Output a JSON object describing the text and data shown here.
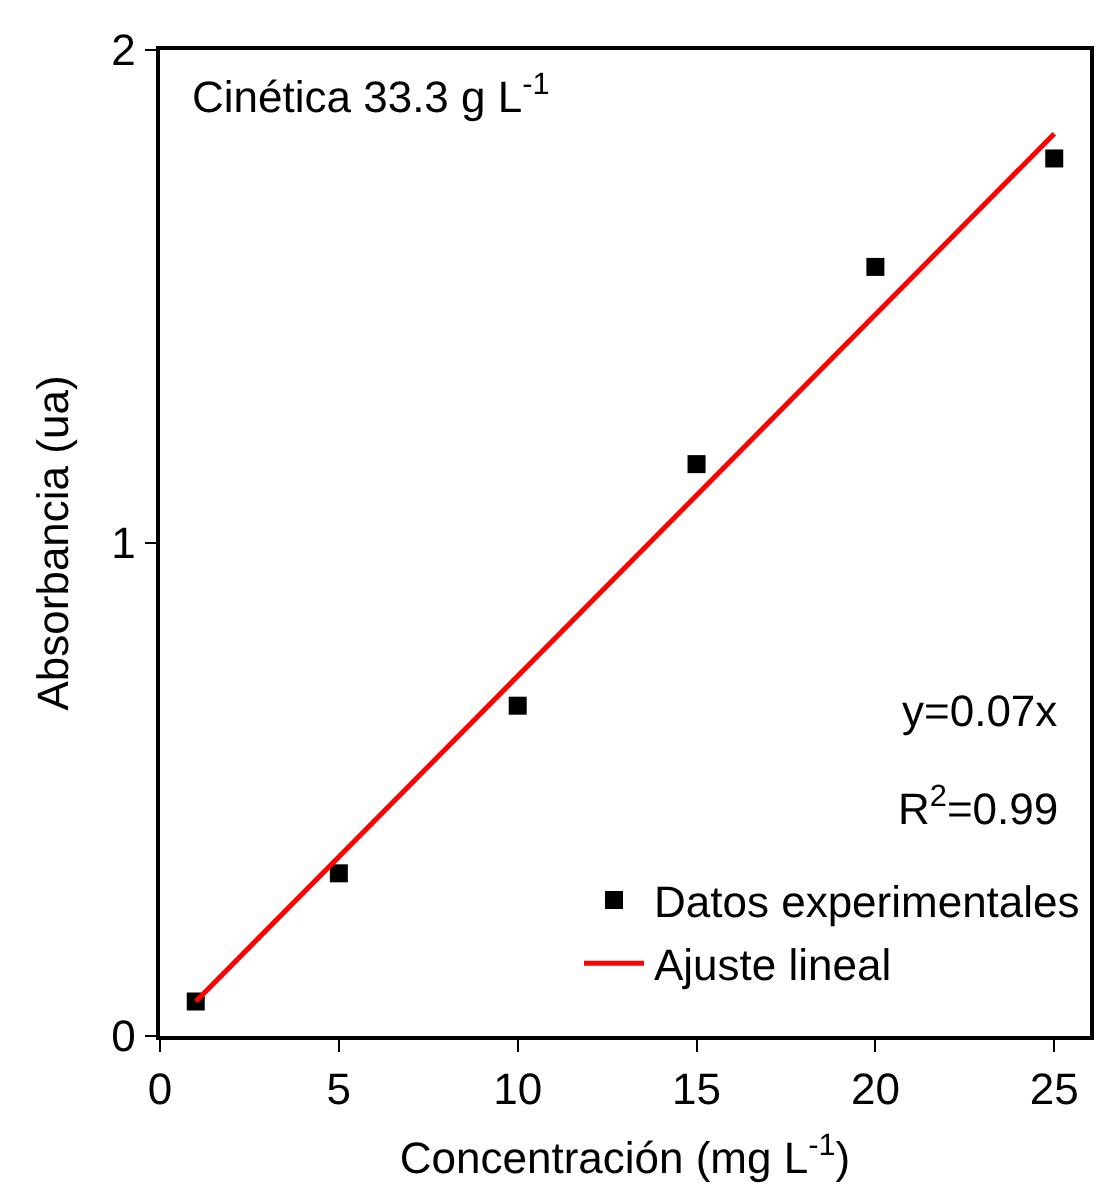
{
  "chart_data": {
    "type": "scatter",
    "xlabel": "Concentración (mg L$^{-1}$)",
    "ylabel": "Absorbancia (ua)",
    "xlim": [
      0,
      26
    ],
    "xticks": [
      0,
      5,
      10,
      15,
      20,
      25
    ],
    "ylim": [
      0,
      2
    ],
    "yticks": [
      0,
      1,
      2
    ],
    "grid": false,
    "legend": "bottom right",
    "annotations": [
      "Cinética 33.3 g L$^{-1}$",
      "y=0.07x",
      "R$^{2}$=0.99"
    ],
    "series": [
      {
        "name": "Datos experimentales",
        "marker": "square",
        "color": "#000000",
        "x": [
          1,
          5,
          10,
          15,
          20,
          25
        ],
        "values": [
          0.07,
          0.33,
          0.67,
          1.16,
          1.56,
          1.78
        ]
      },
      {
        "name": "Ajuste lineal",
        "type": "line",
        "marker": "none",
        "line_style": "solid",
        "color": "#ff0000",
        "x": [
          1,
          25
        ],
        "values": [
          0.07,
          1.83
        ]
      }
    ]
  }
}
